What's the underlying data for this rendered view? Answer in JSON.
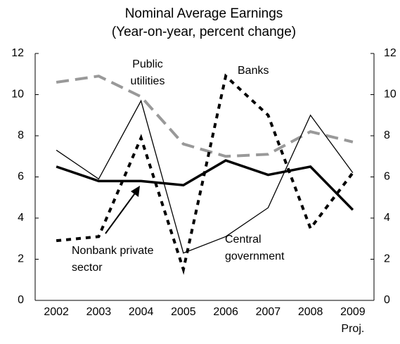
{
  "chart_data": {
    "type": "line",
    "title": "Nominal Average Earnings",
    "subtitle": "(Year-on-year, percent change)",
    "categories": [
      "2002",
      "2003",
      "2004",
      "2005",
      "2006",
      "2007",
      "2008",
      "2009"
    ],
    "x_note": "Proj.",
    "ylim": [
      0,
      12
    ],
    "yticks": [
      0,
      2,
      4,
      6,
      8,
      10,
      12
    ],
    "y2lim": [
      0,
      12
    ],
    "y2ticks": [
      0,
      2,
      4,
      6,
      8,
      10,
      12
    ],
    "grid": false,
    "series": [
      {
        "name": "Public utilities",
        "color": "#999999",
        "style": "dashed",
        "values": [
          10.6,
          10.9,
          9.9,
          7.6,
          7.0,
          7.1,
          8.2,
          7.7
        ]
      },
      {
        "name": "Banks",
        "color": "#000000",
        "style": "dotted",
        "values": [
          2.9,
          3.1,
          7.9,
          1.5,
          10.9,
          9.0,
          3.5,
          6.2
        ]
      },
      {
        "name": "Central government",
        "color": "#000000",
        "style": "thin",
        "values": [
          7.3,
          5.9,
          9.7,
          2.3,
          3.1,
          4.5,
          9.0,
          6.2
        ]
      },
      {
        "name": "Nonbank private sector",
        "color": "#000000",
        "style": "thick",
        "values": [
          6.5,
          5.8,
          5.8,
          5.6,
          6.8,
          6.1,
          6.5,
          4.4
        ]
      }
    ]
  }
}
